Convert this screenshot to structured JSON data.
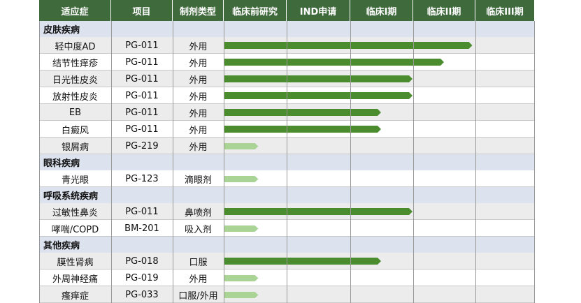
{
  "columns": [
    "适应症",
    "项目",
    "制剂类型",
    "临床前研究",
    "IND申请",
    "临床I期",
    "临床II期",
    "临床III期"
  ],
  "colors": {
    "header_bg": "#3f6a3c",
    "category_bg": "#dce2ee",
    "row_gray": "#ececec",
    "row_white": "#ffffff",
    "bar_dark": "#4a8c2e",
    "bar_light": "#a9d496"
  },
  "chart_data": {
    "type": "gantt-pipeline",
    "stages": [
      "临床前研究",
      "IND申请",
      "临床I期",
      "临床II期",
      "临床III期"
    ],
    "groups": [
      {
        "name": "皮肤疾病",
        "rows": [
          {
            "indication": "轻中度AD",
            "project": "PG-011",
            "form": "外用",
            "progress": 3.95,
            "status": "dark"
          },
          {
            "indication": "结节性痒疹",
            "project": "PG-011",
            "form": "外用",
            "progress": 3.5,
            "status": "dark"
          },
          {
            "indication": "日光性皮炎",
            "project": "PG-011",
            "form": "外用",
            "progress": 3.0,
            "status": "dark"
          },
          {
            "indication": "放射性皮炎",
            "project": "PG-011",
            "form": "外用",
            "progress": 3.0,
            "status": "dark"
          },
          {
            "indication": "EB",
            "project": "PG-011",
            "form": "外用",
            "progress": 2.5,
            "status": "dark"
          },
          {
            "indication": "白癜风",
            "project": "PG-011",
            "form": "外用",
            "progress": 2.5,
            "status": "dark"
          },
          {
            "indication": "银屑病",
            "project": "PG-219",
            "form": "外用",
            "progress": 0.55,
            "status": "light"
          }
        ]
      },
      {
        "name": "眼科疾病",
        "rows": [
          {
            "indication": "青光眼",
            "project": "PG-123",
            "form": "滴眼剂",
            "progress": 0.55,
            "status": "light"
          }
        ]
      },
      {
        "name": "呼吸系统疾病",
        "rows": [
          {
            "indication": "过敏性鼻炎",
            "project": "PG-011",
            "form": "鼻喷剂",
            "progress": 3.0,
            "status": "dark"
          },
          {
            "indication": "哮喘/COPD",
            "project": "BM-201",
            "form": "吸入剂",
            "progress": 0.55,
            "status": "light"
          }
        ]
      },
      {
        "name": "其他疾病",
        "rows": [
          {
            "indication": "膜性肾病",
            "project": "PG-018",
            "form": "口服",
            "progress": 2.5,
            "status": "dark"
          },
          {
            "indication": "外周神经痛",
            "project": "PG-019",
            "form": "外用",
            "progress": 0.55,
            "status": "light"
          },
          {
            "indication": "瘙痒症",
            "project": "PG-033",
            "form": "口服/外用",
            "progress": 0.55,
            "status": "light"
          }
        ]
      }
    ]
  }
}
